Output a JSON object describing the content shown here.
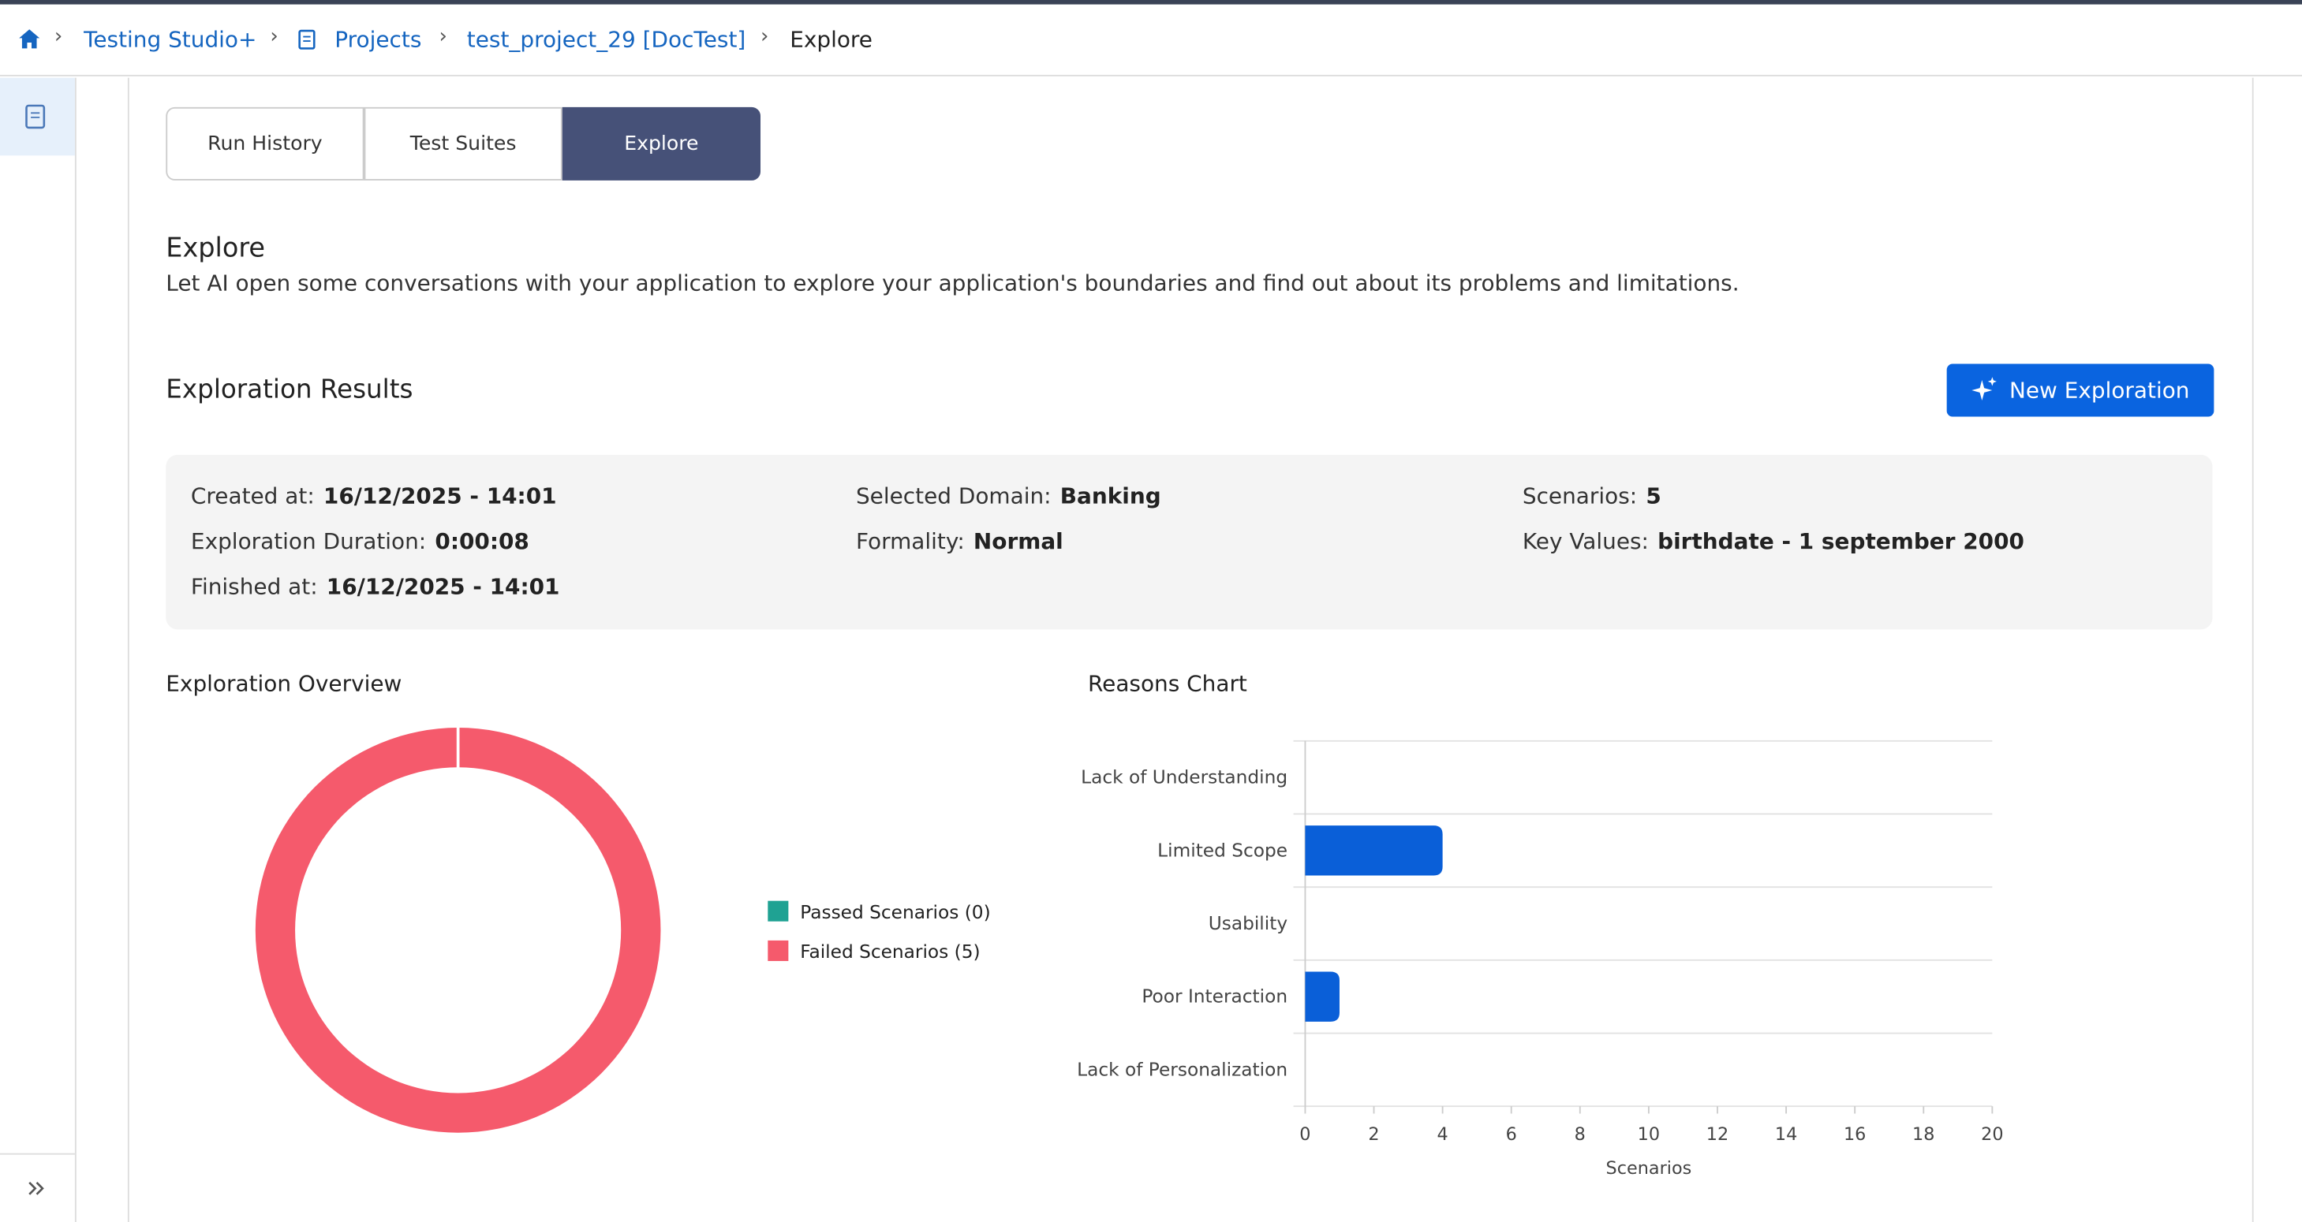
{
  "breadcrumbs": [
    "Testing Studio+",
    "Projects",
    "test_project_29 [DocTest]",
    "Explore"
  ],
  "tabs": [
    "Run History",
    "Test Suites",
    "Explore"
  ],
  "explore": {
    "title": "Explore",
    "description": "Let AI open some conversations with your application to explore your application's boundaries and find out about its problems and limitations."
  },
  "results": {
    "title": "Exploration Results",
    "button": "New Exploration",
    "fields": [
      {
        "label": "Created at:",
        "value": "16/12/2025 - 14:01"
      },
      {
        "label": "Selected Domain:",
        "value": "Banking"
      },
      {
        "label": "Scenarios:",
        "value": "5"
      },
      {
        "label": "Exploration Duration:",
        "value": "0:00:08"
      },
      {
        "label": "Formality:",
        "value": "Normal"
      },
      {
        "label": "Key Values:",
        "value": "birthdate - 1 september 2000"
      },
      {
        "label": "Finished at:",
        "value": "16/12/2025 - 14:01"
      }
    ]
  },
  "chart_data": [
    {
      "type": "pie",
      "title": "Exploration Overview",
      "categories": [
        "Passed Scenarios (0)",
        "Failed Scenarios (5)"
      ],
      "values": [
        0,
        5
      ],
      "colors": [
        "#1fa293",
        "#f55a6c"
      ],
      "donut": true
    },
    {
      "type": "bar",
      "title": "Reasons Chart",
      "orientation": "horizontal",
      "categories": [
        "Lack of Understanding",
        "Limited Scope",
        "Usability",
        "Poor Interaction",
        "Lack of Personalization"
      ],
      "values": [
        0,
        4,
        0,
        1,
        0
      ],
      "color": "#0a5fd8",
      "xlim": [
        0,
        20
      ],
      "xticks": [
        0,
        2,
        4,
        6,
        8,
        10,
        12,
        14,
        16,
        18,
        20
      ],
      "xlabel": "Scenarios"
    }
  ]
}
